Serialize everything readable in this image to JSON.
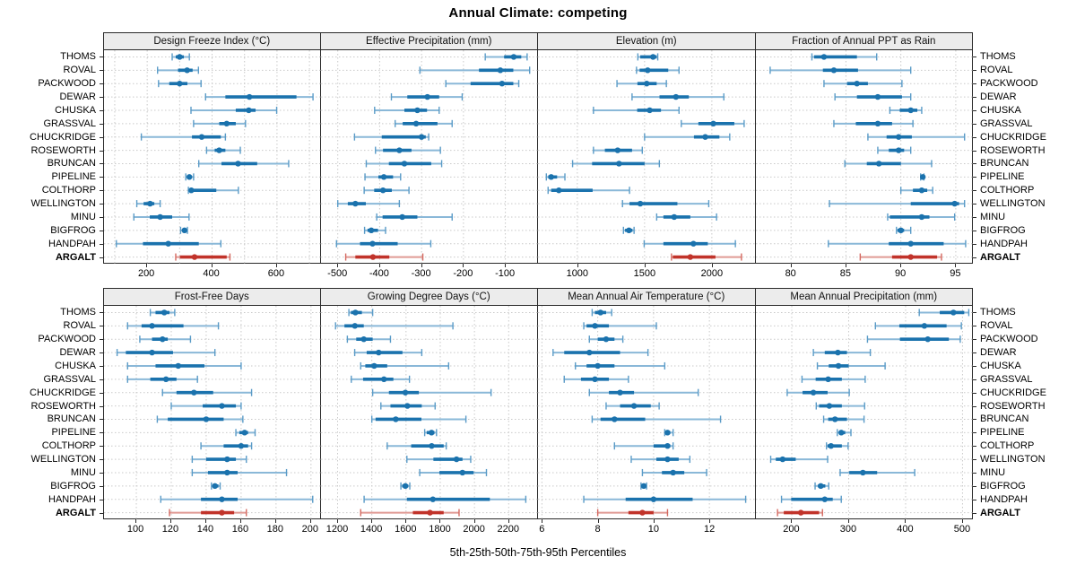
{
  "title": "Annual Climate: competing",
  "caption": "5th-25th-50th-75th-95th Percentiles",
  "sites": [
    "THOMS",
    "ROVAL",
    "PACKWOOD",
    "DEWAR",
    "CHUSKA",
    "GRASSVAL",
    "CHUCKRIDGE",
    "ROSEWORTH",
    "BRUNCAN",
    "PIPELINE",
    "COLTHORP",
    "WELLINGTON",
    "MINU",
    "BIGFROG",
    "HANDPAH",
    "ARGALT"
  ],
  "highlight_site": "ARGALT",
  "colors": {
    "blue_main": "#1a72ad",
    "blue_light": "#8ab8d8",
    "blue_cap": "#5a9bc7",
    "red_main": "#c1332a",
    "red_light": "#e09a94",
    "red_cap": "#d4685f",
    "grid": "#c9c9c9",
    "border": "#2a2a2a",
    "header_bg": "#ececec"
  },
  "chart_data": {
    "type": "dotplot-interval",
    "percentiles": [
      5,
      25,
      50,
      75,
      95
    ],
    "note": "Each row: [5th, 25th, 50th, 75th, 95th] percentile values per site, sites listed top-to-bottom",
    "panels": [
      {
        "slug": "design-freeze-index",
        "title": "Design Freeze Index (°C)",
        "row": "top",
        "domain": [
          67,
          737
        ],
        "ticks": [
          200,
          400,
          600
        ],
        "grid": [
          100,
          200,
          300,
          400,
          500,
          600,
          700
        ],
        "values": [
          [
            277,
            288,
            300,
            313,
            330
          ],
          [
            232,
            295,
            323,
            340,
            358
          ],
          [
            235,
            268,
            300,
            324,
            366
          ],
          [
            380,
            441,
            515,
            660,
            711
          ],
          [
            335,
            473,
            513,
            534,
            599
          ],
          [
            343,
            422,
            445,
            473,
            503
          ],
          [
            182,
            338,
            368,
            427,
            441
          ],
          [
            383,
            408,
            422,
            441,
            487
          ],
          [
            359,
            429,
            480,
            539,
            636
          ],
          [
            319,
            325,
            330,
            336,
            343
          ],
          [
            327,
            331,
            336,
            413,
            481
          ],
          [
            168,
            189,
            209,
            222,
            240
          ],
          [
            159,
            208,
            240,
            277,
            329
          ],
          [
            303,
            310,
            315,
            318,
            324
          ],
          [
            105,
            187,
            265,
            359,
            427
          ],
          [
            288,
            301,
            346,
            445,
            455
          ]
        ]
      },
      {
        "slug": "effective-precipitation",
        "title": "Effective Precipitation (mm)",
        "row": "top",
        "domain": [
          -540,
          -21
        ],
        "ticks": [
          -500,
          -400,
          -300,
          -200,
          -100
        ],
        "grid": [
          -500,
          -400,
          -300,
          -200,
          -100
        ],
        "values": [
          [
            -148,
            -103,
            -80,
            -62,
            -48
          ],
          [
            -304,
            -163,
            -112,
            -81,
            -42
          ],
          [
            -242,
            -183,
            -108,
            -81,
            -68
          ],
          [
            -372,
            -334,
            -286,
            -258,
            -203
          ],
          [
            -412,
            -341,
            -310,
            -287,
            -258
          ],
          [
            -363,
            -345,
            -313,
            -262,
            -227
          ],
          [
            -460,
            -395,
            -300,
            -290,
            -283
          ],
          [
            -410,
            -392,
            -353,
            -324,
            -255
          ],
          [
            -432,
            -378,
            -341,
            -277,
            -252
          ],
          [
            -435,
            -403,
            -390,
            -368,
            -350
          ],
          [
            -437,
            -413,
            -392,
            -371,
            -330
          ],
          [
            -500,
            -476,
            -458,
            -433,
            -353
          ],
          [
            -407,
            -393,
            -346,
            -310,
            -227
          ],
          [
            -436,
            -429,
            -420,
            -404,
            -386
          ],
          [
            -503,
            -447,
            -417,
            -357,
            -278
          ],
          [
            -481,
            -458,
            -416,
            -377,
            -297
          ]
        ]
      },
      {
        "slug": "elevation",
        "title": "Elevation (m)",
        "row": "top",
        "domain": [
          708,
          2324
        ],
        "ticks": [
          1000,
          1500,
          2000
        ],
        "grid": [
          1000,
          1500,
          2000
        ],
        "values": [
          [
            1450,
            1468,
            1563,
            1590,
            1598
          ],
          [
            1440,
            1463,
            1523,
            1676,
            1756
          ],
          [
            1295,
            1447,
            1516,
            1590,
            1662
          ],
          [
            1407,
            1611,
            1733,
            1829,
            2089
          ],
          [
            1120,
            1445,
            1538,
            1622,
            1756
          ],
          [
            1773,
            1900,
            2011,
            2167,
            2240
          ],
          [
            1500,
            1867,
            1951,
            2056,
            2133
          ],
          [
            1120,
            1205,
            1300,
            1407,
            1483
          ],
          [
            965,
            1110,
            1310,
            1500,
            1610
          ],
          [
            770,
            784,
            806,
            850,
            908
          ],
          [
            783,
            806,
            863,
            1114,
            1388
          ],
          [
            1336,
            1388,
            1468,
            1744,
            1977
          ],
          [
            1590,
            1640,
            1720,
            1840,
            2035
          ],
          [
            1343,
            1355,
            1384,
            1410,
            1422
          ],
          [
            1497,
            1640,
            1863,
            1970,
            2175
          ],
          [
            1700,
            1710,
            1840,
            2027,
            2220
          ]
        ]
      },
      {
        "slug": "fraction-ppt-rain",
        "title": "Fraction of Annual PPT as Rain",
        "row": "top",
        "domain": [
          76.8,
          96.6
        ],
        "ticks": [
          80,
          85,
          90,
          95
        ],
        "grid": [
          80,
          85,
          90,
          95
        ],
        "values": [
          [
            81.9,
            82.1,
            83.0,
            86.0,
            87.8
          ],
          [
            78.1,
            82.9,
            83.9,
            86.1,
            90.9
          ],
          [
            83.0,
            85.1,
            86.0,
            87.0,
            90.1
          ],
          [
            84.0,
            86.0,
            87.9,
            90.1,
            90.9
          ],
          [
            89.0,
            89.9,
            90.9,
            91.5,
            91.9
          ],
          [
            83.9,
            85.9,
            87.9,
            89.2,
            91.1
          ],
          [
            87.0,
            88.7,
            89.8,
            91.0,
            95.8
          ],
          [
            87.9,
            88.9,
            89.8,
            90.3,
            90.9
          ],
          [
            84.9,
            86.9,
            88.0,
            90.0,
            92.8
          ],
          [
            91.8,
            91.9,
            92.0,
            92.0,
            92.1
          ],
          [
            90.0,
            91.1,
            91.9,
            92.4,
            92.9
          ],
          [
            83.5,
            90.9,
            94.9,
            95.3,
            95.8
          ],
          [
            88.8,
            89.0,
            91.9,
            92.6,
            94.9
          ],
          [
            89.6,
            89.7,
            90.0,
            90.3,
            90.9
          ],
          [
            83.4,
            88.9,
            90.9,
            93.9,
            95.9
          ],
          [
            86.3,
            89.2,
            90.9,
            93.3,
            93.7
          ]
        ]
      },
      {
        "slug": "frost-free-days",
        "title": "Frost-Free Days",
        "row": "bottom",
        "domain": [
          81.5,
          206
        ],
        "ticks": [
          100,
          120,
          140,
          160,
          180,
          200
        ],
        "grid": [
          100,
          120,
          140,
          160,
          180,
          200
        ],
        "values": [
          [
            108,
            111,
            116,
            119,
            122
          ],
          [
            95,
            103,
            109,
            127,
            147
          ],
          [
            102,
            109,
            115,
            118,
            131
          ],
          [
            89,
            94,
            109,
            121,
            145
          ],
          [
            95,
            111,
            124,
            139,
            160
          ],
          [
            95,
            108,
            117,
            123,
            135
          ],
          [
            115,
            123,
            133,
            144,
            166
          ],
          [
            120,
            138,
            149,
            157,
            160
          ],
          [
            112,
            118,
            140,
            150,
            161
          ],
          [
            157,
            159,
            162,
            164,
            168
          ],
          [
            137,
            150,
            160,
            164,
            166
          ],
          [
            132,
            140,
            152,
            157,
            163
          ],
          [
            132,
            141,
            152,
            158,
            186
          ],
          [
            143,
            144,
            145,
            147,
            148
          ],
          [
            114,
            137,
            149,
            158,
            201
          ],
          [
            119,
            137,
            149,
            156,
            163
          ]
        ]
      },
      {
        "slug": "growing-degree-days",
        "title": "Growing Degree Days (°C)",
        "row": "bottom",
        "domain": [
          1103,
          2374
        ],
        "ticks": [
          1200,
          1400,
          1600,
          1800,
          2000,
          2200
        ],
        "grid": [
          1200,
          1400,
          1600,
          1800,
          2000,
          2200
        ],
        "values": [
          [
            1266,
            1278,
            1304,
            1342,
            1405
          ],
          [
            1188,
            1240,
            1301,
            1353,
            1874
          ],
          [
            1257,
            1309,
            1353,
            1405,
            1509
          ],
          [
            1300,
            1370,
            1440,
            1579,
            1692
          ],
          [
            1335,
            1362,
            1414,
            1490,
            1849
          ],
          [
            1280,
            1349,
            1471,
            1526,
            1620
          ],
          [
            1405,
            1500,
            1596,
            1675,
            2097
          ],
          [
            1453,
            1509,
            1608,
            1692,
            1770
          ],
          [
            1400,
            1422,
            1540,
            1690,
            1950
          ],
          [
            1709,
            1721,
            1749,
            1766,
            1778
          ],
          [
            1490,
            1630,
            1750,
            1820,
            1835
          ],
          [
            1605,
            1760,
            1895,
            1930,
            1978
          ],
          [
            1680,
            1795,
            1930,
            1995,
            2070
          ],
          [
            1570,
            1578,
            1596,
            1613,
            1622
          ],
          [
            1355,
            1605,
            1757,
            2090,
            2300
          ],
          [
            1335,
            1640,
            1740,
            1820,
            1910
          ]
        ]
      },
      {
        "slug": "mean-annual-air-temperature",
        "title": "Mean Annual Air Temperature (°C)",
        "row": "bottom",
        "domain": [
          5.86,
          13.65
        ],
        "ticks": [
          6,
          8,
          10,
          12
        ],
        "grid": [
          6,
          8,
          10,
          12
        ],
        "values": [
          [
            7.8,
            7.9,
            8.1,
            8.3,
            8.5
          ],
          [
            7.5,
            7.6,
            7.9,
            8.4,
            10.1
          ],
          [
            7.7,
            8.0,
            8.3,
            8.6,
            8.9
          ],
          [
            6.4,
            6.8,
            7.7,
            8.8,
            9.8
          ],
          [
            7.2,
            7.6,
            8.0,
            8.6,
            10.4
          ],
          [
            6.8,
            7.4,
            7.9,
            8.4,
            9.1
          ],
          [
            7.7,
            8.4,
            8.8,
            9.3,
            11.6
          ],
          [
            8.3,
            8.8,
            9.3,
            9.9,
            10.2
          ],
          [
            7.8,
            8.1,
            8.6,
            9.7,
            12.4
          ],
          [
            10.4,
            10.45,
            10.5,
            10.6,
            10.7
          ],
          [
            8.6,
            10.0,
            10.5,
            10.6,
            10.7
          ],
          [
            9.2,
            10.1,
            10.5,
            10.9,
            11.3
          ],
          [
            9.6,
            10.3,
            10.7,
            11.1,
            11.9
          ],
          [
            9.55,
            9.6,
            9.65,
            9.7,
            9.75
          ],
          [
            7.5,
            9.0,
            10.0,
            11.4,
            13.3
          ],
          [
            8.0,
            9.1,
            9.6,
            10.0,
            10.5
          ]
        ]
      },
      {
        "slug": "mean-annual-precipitation",
        "title": "Mean Annual Precipitation (mm)",
        "row": "bottom",
        "domain": [
          137,
          519
        ],
        "ticks": [
          200,
          300,
          400,
          500
        ],
        "grid": [
          200,
          300,
          400,
          500
        ],
        "values": [
          [
            424,
            460,
            484,
            503,
            511
          ],
          [
            347,
            389,
            433,
            472,
            498
          ],
          [
            333,
            390,
            439,
            476,
            496
          ],
          [
            238,
            258,
            281,
            297,
            338
          ],
          [
            245,
            265,
            282,
            300,
            364
          ],
          [
            218,
            242,
            264,
            288,
            329
          ],
          [
            192,
            219,
            238,
            263,
            301
          ],
          [
            243,
            248,
            266,
            288,
            328
          ],
          [
            256,
            264,
            276,
            297,
            327
          ],
          [
            280,
            283,
            287,
            294,
            304
          ],
          [
            261,
            263,
            269,
            288,
            299
          ],
          [
            163,
            172,
            184,
            207,
            263
          ],
          [
            285,
            301,
            325,
            350,
            416
          ],
          [
            241,
            246,
            251,
            259,
            265
          ],
          [
            182,
            199,
            258,
            272,
            287
          ],
          [
            175,
            186,
            216,
            248,
            254
          ]
        ]
      }
    ]
  }
}
